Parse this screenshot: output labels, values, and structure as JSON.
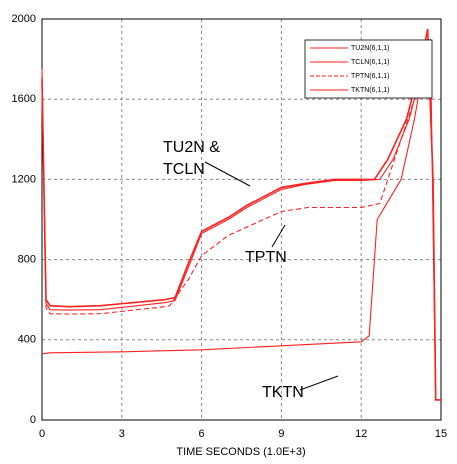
{
  "chart_data": {
    "type": "line",
    "x_label": "TIME SECONDS  (1.0E+3)",
    "xlim": [
      0,
      15
    ],
    "xticks": [
      0,
      3,
      6,
      9,
      12,
      15
    ],
    "ylim": [
      0,
      2000
    ],
    "yticks": [
      0,
      400,
      800,
      1200,
      1600,
      2000
    ],
    "grid": true,
    "legend": "top-right",
    "annotations": [
      [
        "TU2N &",
        "TCLN"
      ],
      [
        "TPTN"
      ],
      [
        "TKTN"
      ]
    ],
    "series": [
      {
        "name": "TU2N(6,1,1)",
        "color": "#ff2020",
        "style": "solid",
        "x": [
          0,
          0.15,
          0.3,
          1,
          2.2,
          4.6,
          5,
          5.5,
          6,
          7,
          7.7,
          9,
          9.9,
          11,
          12,
          12.5,
          13,
          13.7,
          14.2,
          14.5,
          14.7,
          14.8,
          15
        ],
        "values": [
          1700,
          600,
          570,
          565,
          570,
          600,
          610,
          780,
          940,
          1010,
          1070,
          1160,
          1180,
          1200,
          1200,
          1200,
          1300,
          1500,
          1750,
          1950,
          1200,
          100,
          100
        ]
      },
      {
        "name": "TCLN(6,1,1)",
        "color": "#ff2020",
        "style": "solid",
        "x": [
          0,
          0.15,
          0.3,
          1,
          2.2,
          4.6,
          5,
          5.5,
          6,
          7,
          7.7,
          9,
          9.9,
          11,
          12,
          12.7,
          13.2,
          13.8,
          14.2,
          14.5,
          14.7,
          14.8,
          15
        ],
        "values": [
          1750,
          580,
          550,
          548,
          550,
          585,
          595,
          760,
          930,
          1000,
          1060,
          1150,
          1175,
          1195,
          1195,
          1200,
          1300,
          1500,
          1700,
          1900,
          1200,
          100,
          100
        ]
      },
      {
        "name": "TPTN(6,1,1)",
        "color": "#ff2020",
        "style": "dashed",
        "x": [
          0,
          0.15,
          0.3,
          1,
          2.2,
          4.6,
          4.8,
          5.5,
          6,
          7,
          8,
          9,
          10,
          12,
          12.7,
          13.5,
          14,
          14.5,
          14.7,
          14.8
        ],
        "values": [
          1650,
          560,
          530,
          528,
          530,
          565,
          570,
          700,
          820,
          920,
          980,
          1040,
          1060,
          1060,
          1080,
          1400,
          1600,
          1900,
          1200,
          100
        ]
      },
      {
        "name": "TKTN(6,1,1)",
        "color": "#ff2020",
        "style": "solid",
        "x": [
          0,
          0.3,
          3,
          6,
          9,
          12,
          12.3,
          12.6,
          13.5,
          14,
          14.4,
          14.6,
          14.7,
          14.8
        ],
        "values": [
          330,
          335,
          340,
          350,
          370,
          390,
          420,
          1000,
          1200,
          1500,
          1800,
          1900,
          1000,
          100
        ]
      }
    ]
  }
}
